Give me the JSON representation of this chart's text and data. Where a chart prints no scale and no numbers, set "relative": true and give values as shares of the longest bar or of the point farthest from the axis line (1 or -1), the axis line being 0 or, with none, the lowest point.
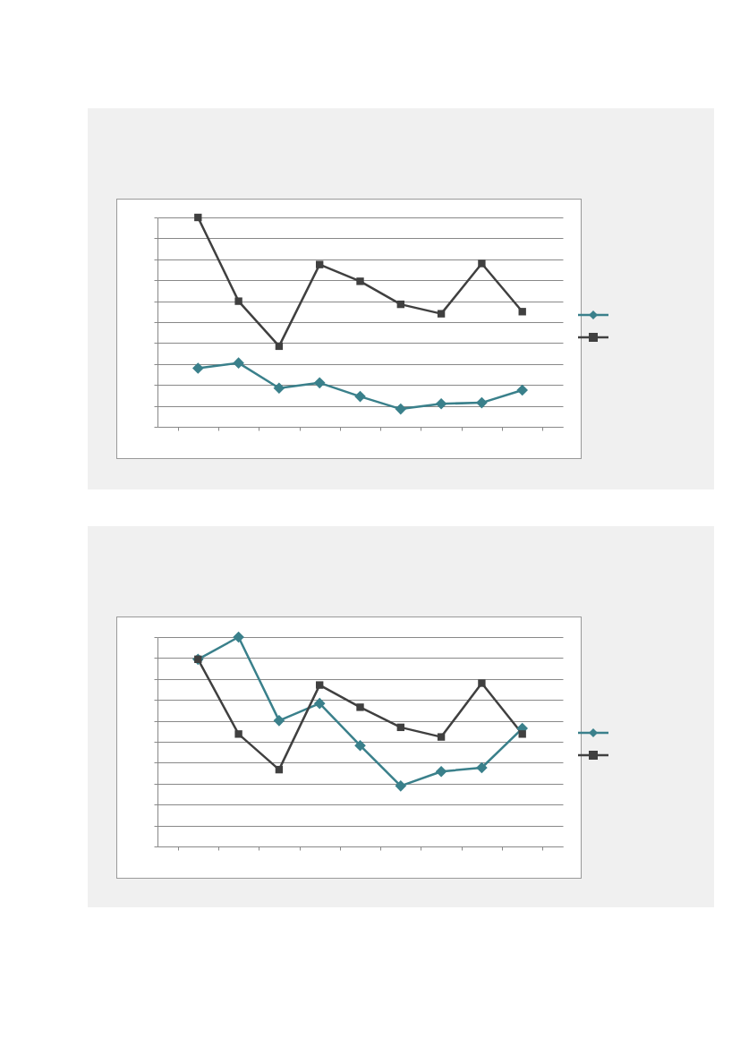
{
  "chart_data": [
    {
      "type": "line",
      "relative": true,
      "grid": "y",
      "categories": [
        null,
        null,
        null,
        null,
        null,
        null,
        null,
        null,
        null
      ],
      "series": [
        {
          "color": "#3a808b",
          "marker": "diamond",
          "values": [
            0.28,
            0.305,
            0.185,
            0.21,
            0.145,
            0.085,
            0.11,
            0.115,
            0.175
          ]
        },
        {
          "color": "#404040",
          "marker": "square",
          "values": [
            1,
            0.6,
            0.385,
            0.775,
            0.695,
            0.585,
            0.54,
            0.78,
            0.55
          ]
        }
      ]
    },
    {
      "type": "line",
      "relative": true,
      "grid": "y",
      "categories": [
        null,
        null,
        null,
        null,
        null,
        null,
        null,
        null,
        null
      ],
      "series": [
        {
          "color": "#3a808b",
          "marker": "diamond",
          "values": [
            0.894,
            1,
            0.601,
            0.683,
            0.482,
            0.289,
            0.358,
            0.376,
            0.564
          ]
        },
        {
          "color": "#404040",
          "marker": "square",
          "values": [
            0.894,
            0.537,
            0.367,
            0.771,
            0.665,
            0.569,
            0.523,
            0.78,
            0.537
          ]
        }
      ]
    }
  ]
}
